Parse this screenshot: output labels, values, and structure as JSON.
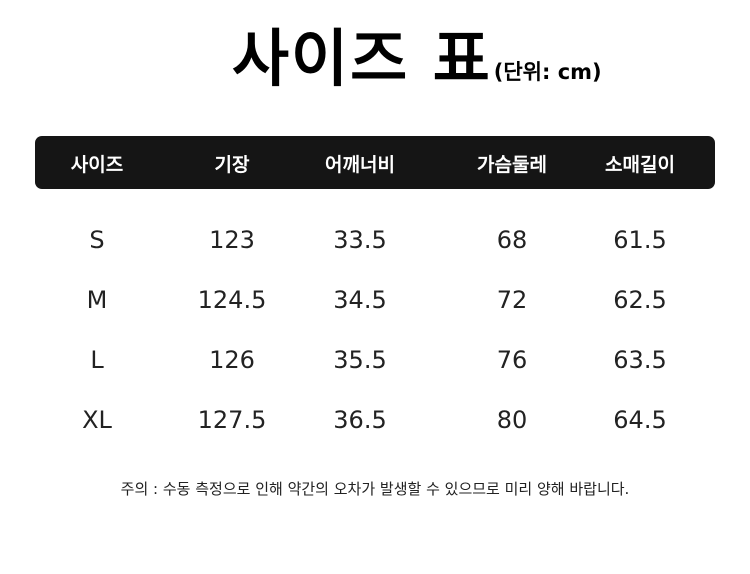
{
  "title": {
    "main": "사이즈 표",
    "unit": "(단위: cm)"
  },
  "table": {
    "headers": [
      "사이즈",
      "기장",
      "어깨너비",
      "가슴둘레",
      "소매길이"
    ],
    "rows": [
      [
        "S",
        "123",
        "33.5",
        "68",
        "61.5"
      ],
      [
        "M",
        "124.5",
        "34.5",
        "72",
        "62.5"
      ],
      [
        "L",
        "126",
        "35.5",
        "76",
        "63.5"
      ],
      [
        "XL",
        "127.5",
        "36.5",
        "80",
        "64.5"
      ]
    ]
  },
  "note": "주의 : 수동 측정으로 인해 약간의 오차가 발생할 수 있으므로 미리 양해 바랍니다.",
  "colors": {
    "header_bg": "#151515",
    "header_text": "#ffffff",
    "text": "#222222"
  }
}
